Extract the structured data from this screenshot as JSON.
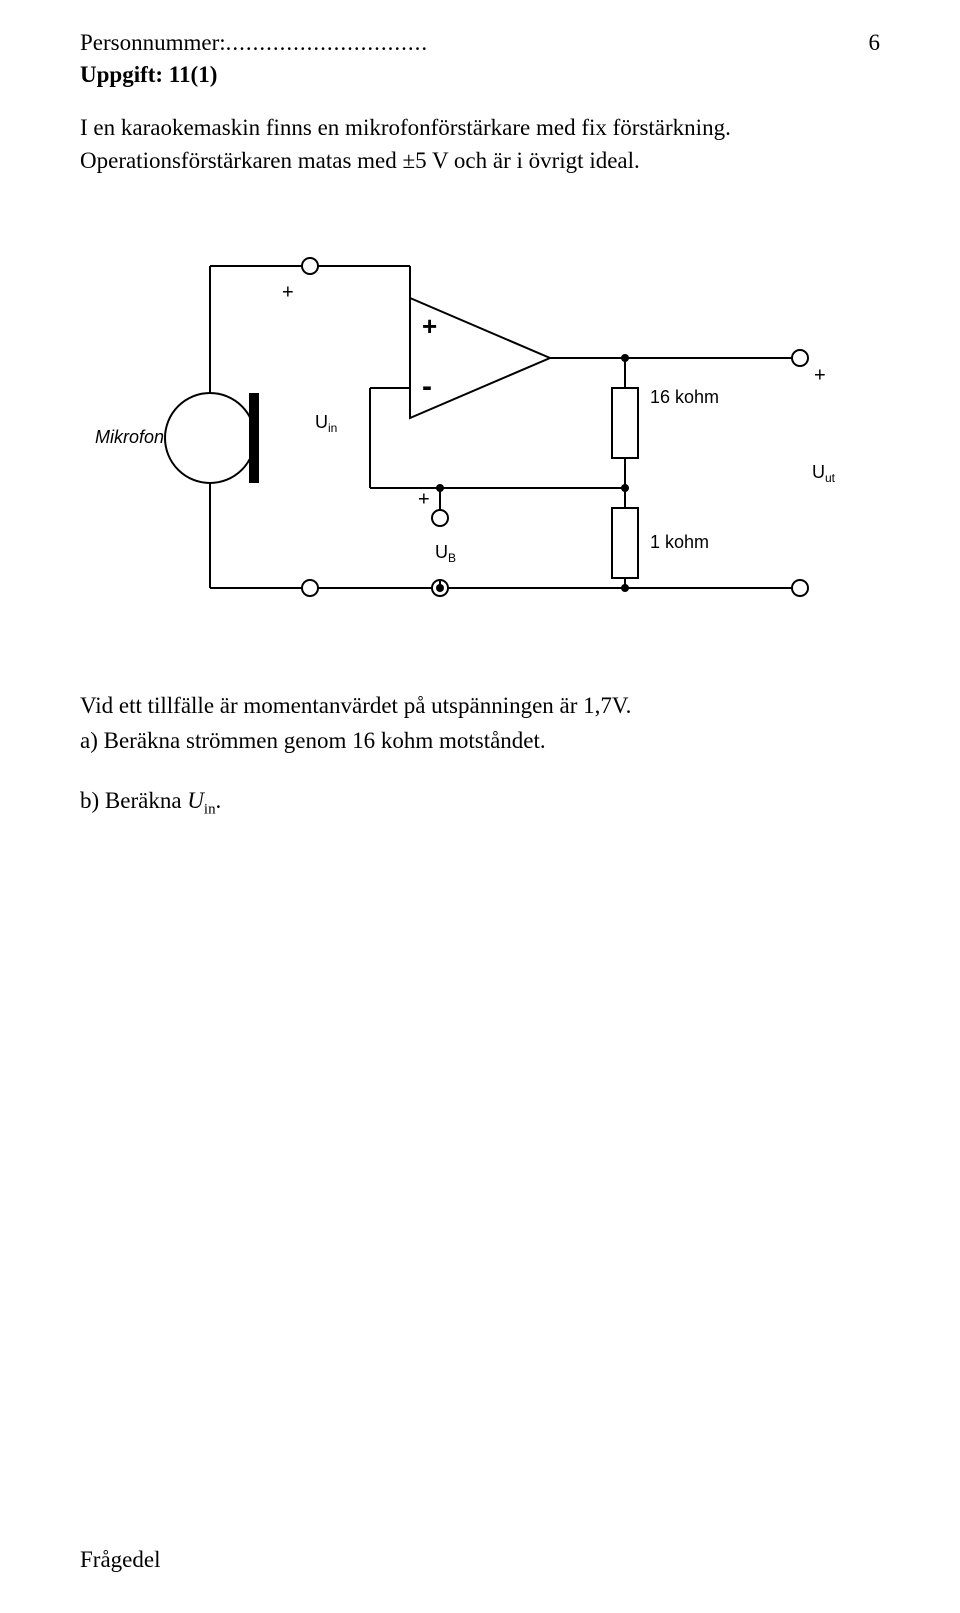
{
  "header": {
    "personnummer_label": "Personnummer:",
    "dots": "..............................",
    "page_number": "6"
  },
  "uppgift": {
    "label": "Uppgift: 11(1)"
  },
  "intro": {
    "p1": "I en karaokemaskin finns en mikrofonförstärkare med fix förstärkning. Operationsförstärkaren matas med ±5 V och är i övrigt ideal."
  },
  "circuit": {
    "mic_label": "Mikrofon",
    "uin": "U",
    "uin_sub": "in",
    "uut": "U",
    "uut_sub": "ut",
    "ub": "U",
    "ub_sub": "B",
    "plus_in": "+",
    "plus_opamp_top": "+",
    "minus_opamp": "-",
    "plus_out": "+",
    "plus_ub": "+",
    "r_top": "16 kohm",
    "r_bot": "1 kohm",
    "stroke": "#000000",
    "fill_bg": "#ffffff",
    "font_family": "Arial",
    "label_fontsize": 18,
    "sub_fontsize": 12,
    "sign_fontsize": 20,
    "mic_font_style": "italic",
    "line_width": 2
  },
  "below": {
    "line1": "Vid ett tillfälle är momentanvärdet på utspänningen är 1,7V.",
    "line2": "a) Beräkna strömmen genom 16 kohm motståndet.",
    "line3_a": "b) Beräkna ",
    "line3_u": "U",
    "line3_sub": "in",
    "line3_b": "."
  },
  "footer": {
    "label": "Frågedel"
  }
}
